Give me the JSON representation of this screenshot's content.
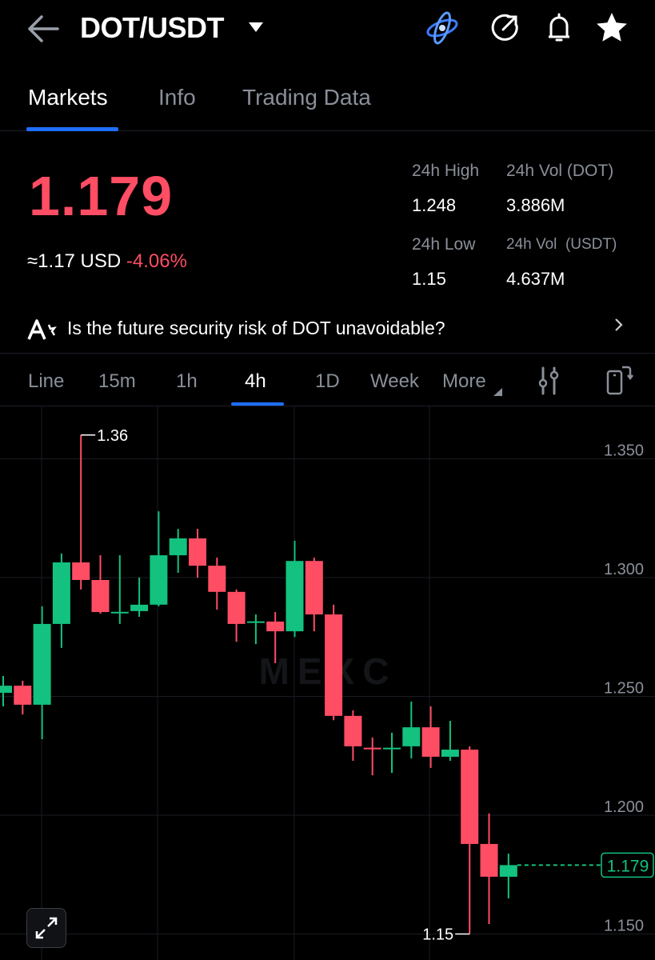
{
  "header": {
    "title": "DOT/USDT",
    "icons": [
      "back-arrow-icon",
      "dropdown-caret-icon",
      "ai-orbit-logo-icon",
      "share-icon",
      "bell-icon",
      "star-icon"
    ]
  },
  "tabs": [
    {
      "label": "Markets",
      "active": true
    },
    {
      "label": "Info"
    },
    {
      "label": "Trading Data"
    }
  ],
  "ticker": {
    "price": "1.179",
    "usd_approx": "≈1.17 USD",
    "change": "-4.06%",
    "stats": {
      "high_label": "24h High",
      "high": "1.248",
      "vol_base_label": "24h Vol (DOT)",
      "vol_base": "3.886M",
      "low_label": "24h Low",
      "low": "1.15",
      "vol_quote_label": "24h Vol  (USDT)",
      "vol_quote": "4.637M"
    }
  },
  "ai_banner": {
    "text": "Is the future security risk of DOT unavoidable?"
  },
  "periods": [
    {
      "label": "Line"
    },
    {
      "label": "15m"
    },
    {
      "label": "1h"
    },
    {
      "label": "4h",
      "active": true
    },
    {
      "label": "1D"
    },
    {
      "label": "Week"
    },
    {
      "label": "More"
    }
  ],
  "colors": {
    "up": "#13c27e",
    "down": "#ff4d64",
    "accent": "#1e6fff",
    "bg": "#000000"
  },
  "chart_data": {
    "type": "candlestick",
    "interval": "4h",
    "watermark": "MEXC",
    "ylim": [
      1.145,
      1.37
    ],
    "y_ticks": [
      "1.350",
      "1.300",
      "1.250",
      "1.200",
      "1.150"
    ],
    "high_marker": "1.36",
    "low_marker": "1.15",
    "last_price": "1.179",
    "grid": true,
    "candles": [
      {
        "o": 1.2515,
        "h": 1.2586,
        "l": 1.2458,
        "c": 1.2545
      },
      {
        "o": 1.2545,
        "h": 1.2566,
        "l": 1.2424,
        "c": 1.2465
      },
      {
        "o": 1.2465,
        "h": 1.2879,
        "l": 1.232,
        "c": 1.2805
      },
      {
        "o": 1.2805,
        "h": 1.3101,
        "l": 1.2704,
        "c": 1.3064
      },
      {
        "o": 1.3064,
        "h": 1.36,
        "l": 1.295,
        "c": 1.299
      },
      {
        "o": 1.299,
        "h": 1.3094,
        "l": 1.2848,
        "c": 1.2855
      },
      {
        "o": 1.2855,
        "h": 1.3094,
        "l": 1.2805,
        "c": 1.2856
      },
      {
        "o": 1.2859,
        "h": 1.3,
        "l": 1.2835,
        "c": 1.2886
      },
      {
        "o": 1.2886,
        "h": 1.3279,
        "l": 1.2879,
        "c": 1.3094
      },
      {
        "o": 1.3094,
        "h": 1.3205,
        "l": 1.302,
        "c": 1.3165
      },
      {
        "o": 1.3165,
        "h": 1.3205,
        "l": 1.3,
        "c": 1.305
      },
      {
        "o": 1.305,
        "h": 1.3084,
        "l": 1.2865,
        "c": 1.294
      },
      {
        "o": 1.294,
        "h": 1.295,
        "l": 1.273,
        "c": 1.2805
      },
      {
        "o": 1.2815,
        "h": 1.2845,
        "l": 1.272,
        "c": 1.2816
      },
      {
        "o": 1.2815,
        "h": 1.2855,
        "l": 1.264,
        "c": 1.2774
      },
      {
        "o": 1.2774,
        "h": 1.3155,
        "l": 1.275,
        "c": 1.307
      },
      {
        "o": 1.307,
        "h": 1.3084,
        "l": 1.2774,
        "c": 1.2845
      },
      {
        "o": 1.2845,
        "h": 1.2886,
        "l": 1.24,
        "c": 1.2418
      },
      {
        "o": 1.2418,
        "h": 1.2441,
        "l": 1.2229,
        "c": 1.229
      },
      {
        "o": 1.2284,
        "h": 1.2327,
        "l": 1.2168,
        "c": 1.2283
      },
      {
        "o": 1.2283,
        "h": 1.2347,
        "l": 1.2178,
        "c": 1.2284
      },
      {
        "o": 1.229,
        "h": 1.2478,
        "l": 1.2239,
        "c": 1.237
      },
      {
        "o": 1.237,
        "h": 1.2458,
        "l": 1.2199,
        "c": 1.2246
      },
      {
        "o": 1.2246,
        "h": 1.2397,
        "l": 1.2229,
        "c": 1.2276
      },
      {
        "o": 1.2276,
        "h": 1.229,
        "l": 1.15,
        "c": 1.1879
      },
      {
        "o": 1.1879,
        "h": 1.2007,
        "l": 1.1542,
        "c": 1.1741
      },
      {
        "o": 1.1741,
        "h": 1.1838,
        "l": 1.165,
        "c": 1.179
      }
    ]
  }
}
